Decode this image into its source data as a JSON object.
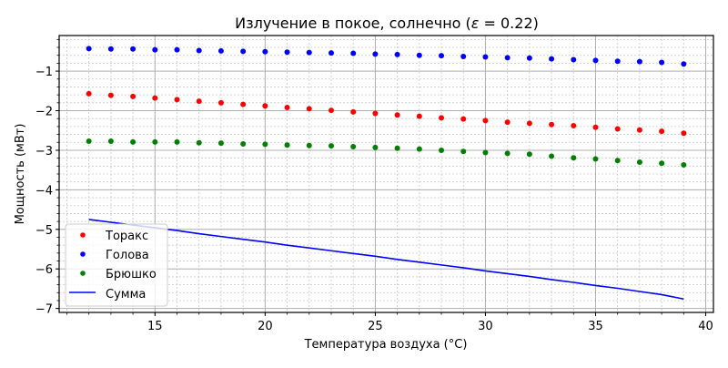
{
  "chart_data": {
    "type": "scatter",
    "title": "Излучение в покое, солнечно (ε = 0.22)",
    "title_parts": {
      "prefix": "Излучение в покое, солнечно (",
      "symbol": "ε",
      "suffix": " = 0.22)"
    },
    "xlabel": "Температура воздуха (°C)",
    "ylabel": "Мощность (мВт)",
    "xlim": [
      10.65,
      40.35
    ],
    "ylim": [
      -7.1,
      -0.1
    ],
    "xticks": [
      15,
      20,
      25,
      30,
      35,
      40
    ],
    "yticks": [
      -1,
      -2,
      -3,
      -4,
      -5,
      -6,
      -7
    ],
    "ytick_labels": [
      "−1",
      "−2",
      "−3",
      "−4",
      "−5",
      "−6",
      "−7"
    ],
    "grid": {
      "major": true,
      "minor": true,
      "minor_style": "dotted"
    },
    "legend_position": "lower left",
    "x": [
      12,
      13,
      14,
      15,
      16,
      17,
      18,
      19,
      20,
      21,
      22,
      23,
      24,
      25,
      26,
      27,
      28,
      29,
      30,
      31,
      32,
      33,
      34,
      35,
      36,
      37,
      38,
      39
    ],
    "series": [
      {
        "name": "Торакс",
        "kind": "scatter",
        "color": "#ff0000",
        "values": [
          -1.57,
          -1.61,
          -1.64,
          -1.68,
          -1.72,
          -1.76,
          -1.8,
          -1.84,
          -1.88,
          -1.92,
          -1.95,
          -1.99,
          -2.03,
          -2.07,
          -2.11,
          -2.14,
          -2.18,
          -2.21,
          -2.25,
          -2.29,
          -2.32,
          -2.35,
          -2.38,
          -2.42,
          -2.46,
          -2.49,
          -2.52,
          -2.57
        ]
      },
      {
        "name": "Голова",
        "kind": "scatter",
        "color": "#0000ff",
        "values": [
          -0.43,
          -0.44,
          -0.44,
          -0.46,
          -0.46,
          -0.48,
          -0.49,
          -0.5,
          -0.51,
          -0.52,
          -0.53,
          -0.54,
          -0.55,
          -0.57,
          -0.58,
          -0.6,
          -0.61,
          -0.63,
          -0.64,
          -0.66,
          -0.67,
          -0.69,
          -0.71,
          -0.73,
          -0.75,
          -0.76,
          -0.78,
          -0.82
        ]
      },
      {
        "name": "Брюшко",
        "kind": "scatter",
        "color": "#008000",
        "values": [
          -2.77,
          -2.77,
          -2.79,
          -2.79,
          -2.79,
          -2.81,
          -2.82,
          -2.84,
          -2.85,
          -2.87,
          -2.88,
          -2.89,
          -2.91,
          -2.93,
          -2.95,
          -2.97,
          -3.0,
          -3.03,
          -3.06,
          -3.08,
          -3.1,
          -3.15,
          -3.19,
          -3.22,
          -3.26,
          -3.3,
          -3.33,
          -3.37
        ]
      },
      {
        "name": "Сумма",
        "kind": "line",
        "color": "#0000ff",
        "values": [
          -4.75,
          -4.82,
          -4.89,
          -4.96,
          -5.03,
          -5.11,
          -5.18,
          -5.25,
          -5.32,
          -5.4,
          -5.47,
          -5.54,
          -5.61,
          -5.68,
          -5.76,
          -5.83,
          -5.9,
          -5.97,
          -6.05,
          -6.12,
          -6.19,
          -6.27,
          -6.34,
          -6.42,
          -6.49,
          -6.57,
          -6.65,
          -6.76
        ]
      }
    ]
  }
}
